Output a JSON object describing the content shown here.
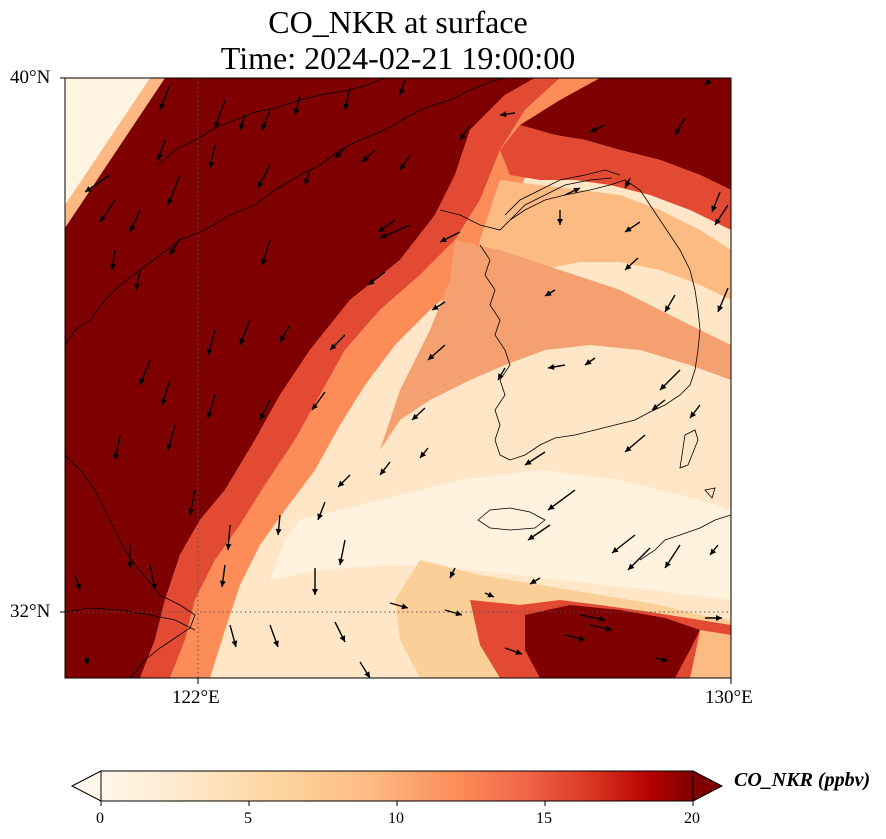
{
  "title": {
    "line1": "CO_NKR at surface",
    "line2": "Time: 2024-02-21 19:00:00"
  },
  "map": {
    "lat_labels": [
      "40°N",
      "32°N"
    ],
    "lon_labels": [
      "122°E",
      "130°E"
    ],
    "extent": {
      "lon_min": 120,
      "lon_max": 130,
      "lat_min": 31,
      "lat_max": 40
    },
    "gridlines": {
      "lon": 122,
      "lat": 32,
      "style": "dotted"
    },
    "field_colormap": "OrRd",
    "high_color": "#7f0000",
    "low_color": "#fff7ec"
  },
  "colorbar": {
    "label": "CO_NKR (ppbv)",
    "ticks": [
      "0",
      "5",
      "10",
      "15",
      "20"
    ],
    "range": [
      0,
      20
    ],
    "extend": "both"
  }
}
